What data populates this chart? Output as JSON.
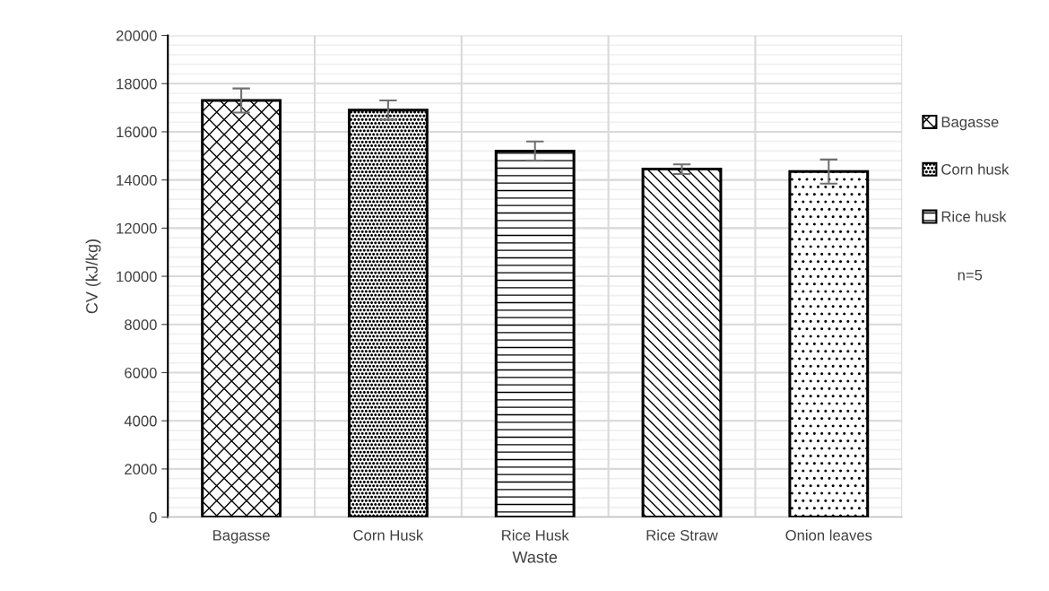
{
  "chart_data": {
    "type": "bar",
    "xlabel": "Waste",
    "ylabel": "CV (kJ/kg)",
    "categories": [
      "Bagasse",
      "Corn Husk",
      "Rice Husk",
      "Rice Straw",
      "Onion leaves"
    ],
    "stacked": true,
    "series": [
      {
        "name": "Bagasse",
        "color": "#000000",
        "values": [
          17300,
          null,
          null,
          null,
          null
        ],
        "errors": [
          500,
          null,
          null,
          null,
          null
        ]
      },
      {
        "name": "Corn husk",
        "color": "#000000",
        "values": [
          null,
          16900,
          null,
          null,
          null
        ],
        "errors": [
          null,
          400,
          null,
          null,
          null
        ]
      },
      {
        "name": "Rice husk",
        "color": "#000000",
        "values": [
          null,
          null,
          15200,
          null,
          null
        ],
        "errors": [
          null,
          null,
          400,
          null,
          null
        ]
      },
      {
        "color": "#000000",
        "values": [
          null,
          null,
          null,
          14450,
          null
        ],
        "errors": [
          null,
          null,
          null,
          200,
          null
        ]
      },
      {
        "color": "#000000",
        "values": [
          null,
          null,
          null,
          null,
          14350
        ],
        "errors": [
          null,
          null,
          null,
          null,
          500
        ]
      }
    ],
    "ylim": [
      0,
      20000
    ],
    "yticks": [
      0,
      2000,
      4000,
      6000,
      8000,
      10000,
      12000,
      14000,
      16000,
      18000,
      20000
    ],
    "grid": true,
    "legend": "right",
    "annotations": [
      "n=5"
    ]
  }
}
